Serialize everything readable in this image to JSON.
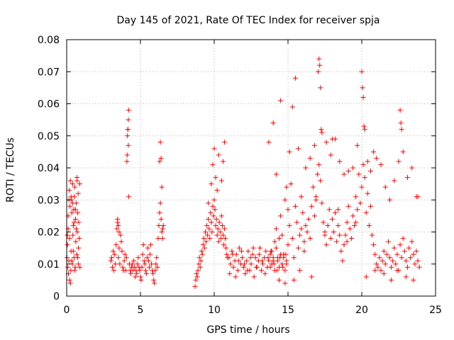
{
  "chart_data": {
    "type": "scatter",
    "title": "Day 145 of 2021, Rate Of TEC Index for receiver spja",
    "xlabel": "GPS time / hours",
    "ylabel": "ROTI / TECUs",
    "xlim": [
      0,
      25
    ],
    "ylim": [
      0,
      0.08
    ],
    "xticks": [
      "0",
      "5",
      "10",
      "15",
      "20",
      "25"
    ],
    "yticks": [
      "0",
      "0.01",
      "0.02",
      "0.03",
      "0.04",
      "0.05",
      "0.06",
      "0.07",
      "0.08"
    ],
    "grid": true,
    "marker": "plus",
    "color": "#ff0000",
    "series": [
      {
        "x": [
          0.02,
          0.05,
          0.08,
          0.1,
          0.12,
          0.15,
          0.18,
          0.2,
          0.22,
          0.25,
          0.28,
          0.3,
          0.32,
          0.35,
          0.38,
          0.4,
          0.42,
          0.45,
          0.48,
          0.5,
          0.52,
          0.55,
          0.58,
          0.6,
          0.62,
          0.65,
          0.68,
          0.7,
          0.72,
          0.75,
          0.78,
          0.8,
          0.82,
          0.85,
          0.88,
          0.9,
          0.1,
          0.2,
          0.3,
          0.4,
          0.5,
          0.6,
          0.7,
          0.8,
          0.25,
          0.35,
          0.45,
          0.55,
          0.65,
          0.75,
          0.05,
          0.15,
          3.0,
          3.05,
          3.1,
          3.15,
          3.2,
          3.25,
          3.3,
          3.35,
          3.4,
          3.45,
          3.5,
          3.55,
          3.6,
          3.65,
          3.7,
          3.75,
          3.8,
          3.85,
          3.9,
          3.95,
          4.0,
          4.05,
          4.08,
          4.1,
          4.12,
          4.15,
          4.18,
          4.2,
          4.25,
          4.3,
          4.35,
          4.4,
          4.45,
          4.5,
          4.55,
          4.6,
          4.65,
          4.7,
          4.75,
          4.8,
          4.85,
          4.9,
          4.95,
          5.0,
          5.05,
          5.1,
          5.15,
          5.2,
          5.25,
          5.3,
          5.35,
          5.4,
          5.45,
          5.5,
          5.55,
          5.6,
          5.65,
          5.7,
          5.75,
          5.8,
          5.85,
          5.9,
          5.95,
          6.0,
          6.05,
          6.1,
          6.15,
          6.2,
          6.25,
          6.3,
          6.35,
          6.4,
          6.45,
          6.5,
          6.55,
          3.45,
          3.5,
          3.55,
          4.15,
          4.18,
          4.2,
          6.3,
          6.35,
          6.4,
          6.45,
          6.5,
          8.7,
          8.75,
          8.8,
          8.85,
          8.9,
          8.95,
          9.0,
          9.05,
          9.1,
          9.15,
          9.2,
          9.25,
          9.3,
          9.35,
          9.4,
          9.45,
          9.5,
          9.55,
          9.6,
          9.65,
          9.7,
          9.75,
          9.8,
          9.85,
          9.9,
          9.95,
          10.0,
          10.05,
          10.1,
          10.15,
          10.2,
          10.25,
          10.3,
          10.35,
          10.4,
          10.45,
          10.5,
          10.55,
          10.6,
          10.65,
          10.7,
          10.75,
          10.8,
          10.85,
          10.9,
          9.9,
          10.0,
          10.1,
          10.2,
          10.3,
          10.5,
          10.6,
          10.7,
          9.6,
          9.8,
          11.0,
          11.1,
          11.2,
          11.3,
          11.4,
          11.5,
          11.6,
          11.7,
          11.8,
          11.9,
          12.0,
          12.1,
          12.2,
          12.3,
          12.4,
          12.5,
          12.6,
          12.7,
          12.8,
          12.9,
          13.0,
          13.1,
          13.2,
          13.3,
          13.4,
          13.5,
          13.6,
          13.7,
          13.8,
          13.9,
          14.0,
          14.1,
          14.2,
          14.3,
          14.4,
          14.5,
          14.6,
          14.7,
          14.8,
          14.9,
          11.05,
          11.25,
          11.45,
          11.65,
          11.85,
          12.05,
          12.25,
          12.45,
          12.65,
          12.85,
          13.05,
          13.25,
          13.45,
          13.65,
          13.85,
          14.05,
          14.25,
          14.45,
          14.65,
          14.85,
          13.8,
          13.9,
          14.0,
          14.1,
          14.2,
          14.3,
          14.4,
          14.5,
          14.6,
          14.7,
          14.8,
          14.9,
          15.0,
          15.1,
          15.2,
          15.3,
          15.4,
          15.5,
          15.6,
          15.7,
          15.8,
          15.9,
          16.0,
          16.1,
          16.2,
          16.3,
          16.4,
          16.5,
          16.6,
          16.7,
          16.8,
          16.9,
          17.0,
          17.1,
          17.2,
          17.3,
          17.4,
          17.5,
          17.6,
          17.7,
          17.8,
          17.9,
          18.0,
          18.1,
          18.2,
          18.3,
          18.4,
          18.5,
          18.6,
          18.7,
          18.8,
          18.9,
          19.0,
          19.1,
          19.2,
          19.3,
          19.4,
          19.5,
          19.6,
          19.7,
          19.8,
          19.9,
          20.0,
          20.1,
          20.2,
          20.3,
          20.4,
          20.5,
          20.6,
          20.7,
          20.8,
          20.9,
          21.0,
          21.1,
          21.2,
          21.3,
          21.4,
          21.5,
          21.6,
          21.7,
          21.8,
          21.9,
          22.0,
          22.1,
          22.2,
          22.3,
          22.4,
          22.5,
          22.6,
          22.7,
          22.8,
          22.9,
          23.0,
          23.1,
          23.2,
          23.3,
          23.4,
          23.5,
          23.6,
          23.7,
          23.8,
          23.9,
          14.2,
          14.5,
          14.9,
          15.1,
          15.3,
          15.5,
          15.7,
          15.9,
          16.2,
          16.5,
          16.8,
          17.05,
          17.1,
          17.15,
          17.2,
          17.25,
          17.3,
          17.6,
          17.9,
          18.2,
          18.5,
          18.8,
          19.1,
          19.4,
          19.7,
          20.0,
          20.05,
          20.1,
          20.15,
          20.2,
          20.4,
          20.6,
          20.8,
          21.0,
          21.3,
          21.6,
          21.9,
          22.2,
          22.5,
          22.6,
          22.65,
          22.7,
          22.8,
          23.1,
          23.4,
          23.7,
          13.7,
          14.0,
          14.4,
          14.8,
          15.0,
          15.4,
          15.8,
          16.1,
          16.6,
          16.9,
          17.5,
          18.0,
          18.4,
          19.0,
          19.6,
          20.3,
          20.9,
          21.5,
          22.0,
          22.4,
          23.0,
          23.5,
          23.8
        ],
        "y": [
          0.012,
          0.016,
          0.009,
          0.021,
          0.007,
          0.011,
          0.033,
          0.005,
          0.028,
          0.036,
          0.008,
          0.014,
          0.03,
          0.026,
          0.01,
          0.035,
          0.019,
          0.022,
          0.027,
          0.012,
          0.031,
          0.034,
          0.009,
          0.024,
          0.017,
          0.029,
          0.013,
          0.037,
          0.02,
          0.026,
          0.032,
          0.01,
          0.023,
          0.018,
          0.035,
          0.009,
          0.025,
          0.018,
          0.031,
          0.029,
          0.023,
          0.027,
          0.036,
          0.015,
          0.004,
          0.011,
          0.014,
          0.008,
          0.021,
          0.012,
          0.019,
          0.03,
          0.011,
          0.012,
          0.009,
          0.014,
          0.008,
          0.013,
          0.01,
          0.016,
          0.021,
          0.023,
          0.012,
          0.015,
          0.01,
          0.019,
          0.017,
          0.014,
          0.009,
          0.008,
          0.011,
          0.013,
          0.008,
          0.012,
          0.042,
          0.044,
          0.05,
          0.052,
          0.047,
          0.031,
          0.01,
          0.008,
          0.007,
          0.009,
          0.01,
          0.008,
          0.011,
          0.009,
          0.006,
          0.008,
          0.007,
          0.01,
          0.012,
          0.009,
          0.008,
          0.006,
          0.005,
          0.009,
          0.013,
          0.016,
          0.011,
          0.01,
          0.008,
          0.007,
          0.012,
          0.015,
          0.011,
          0.009,
          0.013,
          0.016,
          0.01,
          0.008,
          0.007,
          0.005,
          0.004,
          0.008,
          0.01,
          0.012,
          0.009,
          0.018,
          0.022,
          0.026,
          0.029,
          0.024,
          0.02,
          0.018,
          0.022,
          0.024,
          0.022,
          0.02,
          0.052,
          0.055,
          0.058,
          0.042,
          0.048,
          0.043,
          0.034,
          0.021,
          0.003,
          0.005,
          0.007,
          0.006,
          0.008,
          0.01,
          0.012,
          0.009,
          0.011,
          0.014,
          0.013,
          0.016,
          0.018,
          0.015,
          0.02,
          0.017,
          0.022,
          0.019,
          0.024,
          0.021,
          0.018,
          0.026,
          0.023,
          0.02,
          0.028,
          0.025,
          0.03,
          0.027,
          0.022,
          0.024,
          0.019,
          0.021,
          0.017,
          0.023,
          0.02,
          0.018,
          0.025,
          0.022,
          0.019,
          0.016,
          0.021,
          0.018,
          0.015,
          0.013,
          0.012,
          0.041,
          0.046,
          0.037,
          0.033,
          0.044,
          0.036,
          0.042,
          0.048,
          0.029,
          0.035,
          0.012,
          0.01,
          0.014,
          0.009,
          0.011,
          0.013,
          0.008,
          0.015,
          0.01,
          0.012,
          0.009,
          0.007,
          0.011,
          0.014,
          0.008,
          0.01,
          0.013,
          0.006,
          0.012,
          0.009,
          0.011,
          0.015,
          0.008,
          0.01,
          0.012,
          0.014,
          0.009,
          0.011,
          0.013,
          0.01,
          0.012,
          0.008,
          0.015,
          0.011,
          0.009,
          0.013,
          0.01,
          0.012,
          0.008,
          0.011,
          0.007,
          0.013,
          0.006,
          0.011,
          0.014,
          0.01,
          0.008,
          0.012,
          0.015,
          0.009,
          0.013,
          0.011,
          0.007,
          0.012,
          0.014,
          0.01,
          0.008,
          0.012,
          0.009,
          0.013,
          0.009,
          0.014,
          0.011,
          0.017,
          0.021,
          0.012,
          0.018,
          0.025,
          0.019,
          0.013,
          0.03,
          0.01,
          0.016,
          0.022,
          0.035,
          0.018,
          0.012,
          0.028,
          0.023,
          0.015,
          0.019,
          0.021,
          0.026,
          0.017,
          0.022,
          0.02,
          0.024,
          0.018,
          0.028,
          0.034,
          0.025,
          0.031,
          0.038,
          0.041,
          0.036,
          0.029,
          0.023,
          0.019,
          0.016,
          0.022,
          0.027,
          0.018,
          0.024,
          0.02,
          0.026,
          0.017,
          0.022,
          0.019,
          0.014,
          0.011,
          0.016,
          0.019,
          0.023,
          0.028,
          0.021,
          0.018,
          0.025,
          0.022,
          0.031,
          0.027,
          0.038,
          0.029,
          0.034,
          0.041,
          0.037,
          0.026,
          0.032,
          0.022,
          0.028,
          0.019,
          0.016,
          0.013,
          0.01,
          0.009,
          0.012,
          0.008,
          0.011,
          0.014,
          0.01,
          0.013,
          0.017,
          0.012,
          0.009,
          0.011,
          0.015,
          0.01,
          0.013,
          0.008,
          0.016,
          0.012,
          0.018,
          0.014,
          0.011,
          0.009,
          0.015,
          0.012,
          0.017,
          0.013,
          0.01,
          0.014,
          0.011,
          0.009,
          0.038,
          0.061,
          0.034,
          0.045,
          0.059,
          0.068,
          0.046,
          0.031,
          0.04,
          0.043,
          0.047,
          0.07,
          0.074,
          0.072,
          0.065,
          0.052,
          0.051,
          0.048,
          0.044,
          0.049,
          0.042,
          0.038,
          0.039,
          0.04,
          0.047,
          0.07,
          0.065,
          0.062,
          0.053,
          0.052,
          0.042,
          0.039,
          0.045,
          0.043,
          0.041,
          0.034,
          0.03,
          0.036,
          0.042,
          0.058,
          0.054,
          0.052,
          0.045,
          0.037,
          0.04,
          0.031,
          0.048,
          0.054,
          0.005,
          0.004,
          0.027,
          0.005,
          0.008,
          0.014,
          0.006,
          0.03,
          0.02,
          0.049,
          0.027,
          0.017,
          0.023,
          0.006,
          0.008,
          0.007,
          0.005,
          0.008,
          0.006,
          0.005,
          0.031
        ]
      }
    ]
  }
}
